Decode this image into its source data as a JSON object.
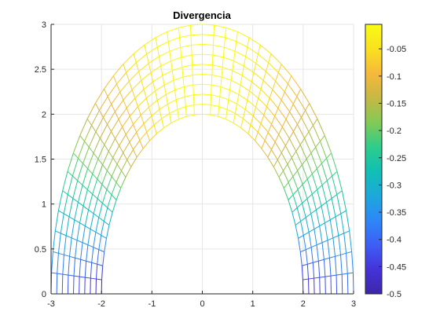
{
  "chart_data": {
    "type": "mesh",
    "title": "Divergencia",
    "xlabel": "",
    "ylabel": "",
    "xlim": [
      -3,
      3
    ],
    "ylim": [
      0,
      3
    ],
    "xticks": [
      -3,
      -2,
      -1,
      0,
      1,
      2,
      3
    ],
    "yticks": [
      0,
      0.5,
      1,
      1.5,
      2,
      2.5,
      3
    ],
    "xtick_labels": [
      "-3",
      "-2",
      "-1",
      "0",
      "1",
      "2",
      "3"
    ],
    "ytick_labels": [
      "0",
      "0.5",
      "1",
      "1.5",
      "2",
      "2.5",
      "3"
    ],
    "grid": true,
    "box": false,
    "surface": {
      "description": "Half-annular polar mesh colored by divergence",
      "r_range": [
        2,
        3
      ],
      "theta_range_deg": [
        0,
        180
      ],
      "x_semi_axis": [
        2,
        3
      ],
      "y_semi_axis": [
        2,
        3
      ],
      "radial_lines": 10,
      "angular_lines": 41,
      "value_min": -0.5,
      "value_max": -0.005,
      "value_formula": "-(1 - sin(theta)) * (2 / r) ^ 0.5 / 2"
    },
    "colorbar": {
      "colormap": "parula",
      "min": -0.5,
      "max": -0.005,
      "ticks": [
        -0.05,
        -0.1,
        -0.15,
        -0.2,
        -0.25,
        -0.3,
        -0.35,
        -0.4,
        -0.45,
        -0.5
      ],
      "tick_labels": [
        "-0.05",
        "-0.1",
        "-0.15",
        "-0.2",
        "-0.25",
        "-0.3",
        "-0.35",
        "-0.4",
        "-0.45",
        "-0.5"
      ],
      "stops": [
        "#3e26a8",
        "#4433d8",
        "#3e5ef5",
        "#2d87f7",
        "#1da8db",
        "#11bfb4",
        "#2ecd8a",
        "#82ca55",
        "#c6b844",
        "#f6b93b",
        "#f9e11f",
        "#f9fb15"
      ]
    }
  }
}
